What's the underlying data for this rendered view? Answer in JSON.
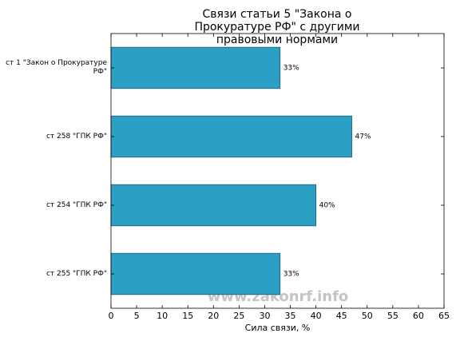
{
  "chart_data": {
    "type": "bar",
    "orientation": "horizontal",
    "title": "Связи статьи 5 \"Закона о Прокуратуре РФ\" с другими правовыми нормами",
    "categories": [
      "ст 1 \"Закон о Прокуратуре РФ\"",
      "ст 258 \"ГПК РФ\"",
      "ст 254 \"ГПК РФ\"",
      "ст 255 \"ГПК РФ\""
    ],
    "values": [
      33,
      47,
      40,
      33
    ],
    "value_labels": [
      "33%",
      "47%",
      "40%",
      "33%"
    ],
    "color": "#2b9fc4",
    "xlabel": "Сила связи, %",
    "xlim": [
      0,
      65
    ],
    "xticks": [
      0,
      5,
      10,
      15,
      20,
      25,
      30,
      35,
      40,
      45,
      50,
      55,
      60,
      65
    ],
    "annotation": "www.zakonrf.info"
  }
}
